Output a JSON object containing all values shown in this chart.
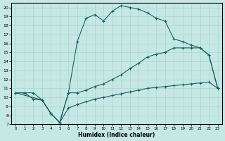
{
  "xlabel": "Humidex (Indice chaleur)",
  "xlim": [
    -0.5,
    23.5
  ],
  "ylim": [
    7,
    20.5
  ],
  "xticks": [
    0,
    1,
    2,
    3,
    4,
    5,
    6,
    7,
    8,
    9,
    10,
    11,
    12,
    13,
    14,
    15,
    16,
    17,
    18,
    19,
    20,
    21,
    22,
    23
  ],
  "yticks": [
    7,
    8,
    9,
    10,
    11,
    12,
    13,
    14,
    15,
    16,
    17,
    18,
    19,
    20
  ],
  "bg_color": "#c5e8e5",
  "grid_color": "#aad4d0",
  "line_color": "#1a6060",
  "curve_x": [
    0,
    3,
    4,
    5,
    6,
    7,
    8,
    9,
    10,
    11,
    12,
    13,
    14,
    15,
    16,
    17,
    18,
    19,
    20,
    21,
    22,
    23
  ],
  "curve_y": [
    10.5,
    9.7,
    8.2,
    7.2,
    10.5,
    16.2,
    18.8,
    19.2,
    18.5,
    19.6,
    20.2,
    20.0,
    19.8,
    19.4,
    18.8,
    18.5,
    16.5,
    16.2,
    15.8,
    15.5,
    14.7,
    11.0
  ],
  "line_mid_x": [
    0,
    1,
    2,
    3,
    4,
    5,
    6,
    7,
    8,
    9,
    10,
    11,
    12,
    13,
    14,
    15,
    16,
    17,
    18,
    19,
    20,
    21,
    22,
    23
  ],
  "line_mid_y": [
    10.5,
    10.5,
    10.5,
    9.7,
    8.2,
    7.2,
    10.5,
    10.5,
    10.8,
    11.2,
    11.5,
    12.0,
    12.5,
    13.2,
    13.8,
    14.5,
    14.8,
    15.0,
    15.5,
    15.5,
    15.5,
    15.5,
    14.7,
    11.0
  ],
  "line_bot_x": [
    0,
    1,
    2,
    3,
    4,
    5,
    6,
    7,
    8,
    9,
    10,
    11,
    12,
    13,
    14,
    15,
    16,
    17,
    18,
    19,
    20,
    21,
    22,
    23
  ],
  "line_bot_y": [
    10.5,
    10.5,
    9.8,
    9.7,
    8.2,
    7.2,
    8.8,
    9.2,
    9.5,
    9.8,
    10.0,
    10.2,
    10.4,
    10.6,
    10.8,
    11.0,
    11.1,
    11.2,
    11.3,
    11.4,
    11.5,
    11.6,
    11.7,
    11.0
  ]
}
